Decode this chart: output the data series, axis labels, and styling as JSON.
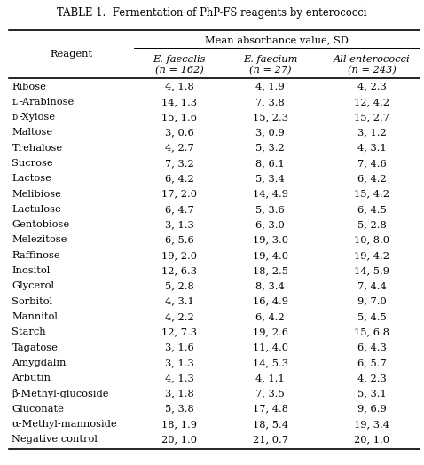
{
  "title": "TABLE 1.  Fermentation of PhP-FS reagents by enterococci",
  "header_top": "Mean absorbance value, SD",
  "col_headers_italic": [
    "E. faecalis",
    "E. faecium",
    "All enterococci"
  ],
  "col_headers_sub": [
    "(n = 162)",
    "(n = 27)",
    "(n = 243)"
  ],
  "rows": [
    [
      "Ribose",
      "4, 1.8",
      "4, 1.9",
      "4, 2.3"
    ],
    [
      "L-Arabinose",
      "14, 1.3",
      "7, 3.8",
      "12, 4.2"
    ],
    [
      "D-Xylose",
      "15, 1.6",
      "15, 2.3",
      "15, 2.7"
    ],
    [
      "Maltose",
      "3, 0.6",
      "3, 0.9",
      "3, 1.2"
    ],
    [
      "Trehalose",
      "4, 2.7",
      "5, 3.2",
      "4, 3.1"
    ],
    [
      "Sucrose",
      "7, 3.2",
      "8, 6.1",
      "7, 4.6"
    ],
    [
      "Lactose",
      "6, 4.2",
      "5, 3.4",
      "6, 4.2"
    ],
    [
      "Melibiose",
      "17, 2.0",
      "14, 4.9",
      "15, 4.2"
    ],
    [
      "Lactulose",
      "6, 4.7",
      "5, 3.6",
      "6, 4.5"
    ],
    [
      "Gentobiose",
      "3, 1.3",
      "6, 3.0",
      "5, 2.8"
    ],
    [
      "Melezitose",
      "6, 5.6",
      "19, 3.0",
      "10, 8.0"
    ],
    [
      "Raffinose",
      "19, 2.0",
      "19, 4.0",
      "19, 4.2"
    ],
    [
      "Inositol",
      "12, 6.3",
      "18, 2.5",
      "14, 5.9"
    ],
    [
      "Glycerol",
      "5, 2.8",
      "8, 3.4",
      "7, 4.4"
    ],
    [
      "Sorbitol",
      "4, 3.1",
      "16, 4.9",
      "9, 7.0"
    ],
    [
      "Mannitol",
      "4, 2.2",
      "6, 4.2",
      "5, 4.5"
    ],
    [
      "Starch",
      "12, 7.3",
      "19, 2.6",
      "15, 6.8"
    ],
    [
      "Tagatose",
      "3, 1.6",
      "11, 4.0",
      "6, 4.3"
    ],
    [
      "Amygdalin",
      "3, 1.3",
      "14, 5.3",
      "6, 5.7"
    ],
    [
      "Arbutin",
      "4, 1.3",
      "4, 1.1",
      "4, 2.3"
    ],
    [
      "β-Methyl-glucoside",
      "3, 1.8",
      "7, 3.5",
      "5, 3.1"
    ],
    [
      "Gluconate",
      "5, 3.8",
      "17, 4.8",
      "9, 6.9"
    ],
    [
      "α-Methyl-mannoside",
      "18, 1.9",
      "18, 5.4",
      "19, 3.4"
    ],
    [
      "Negative control",
      "20, 1.0",
      "21, 0.7",
      "20, 1.0"
    ]
  ],
  "background_color": "#ffffff",
  "text_color": "#000000",
  "font_size": 8.2,
  "header_font_size": 8.2,
  "title_font_size": 8.4
}
